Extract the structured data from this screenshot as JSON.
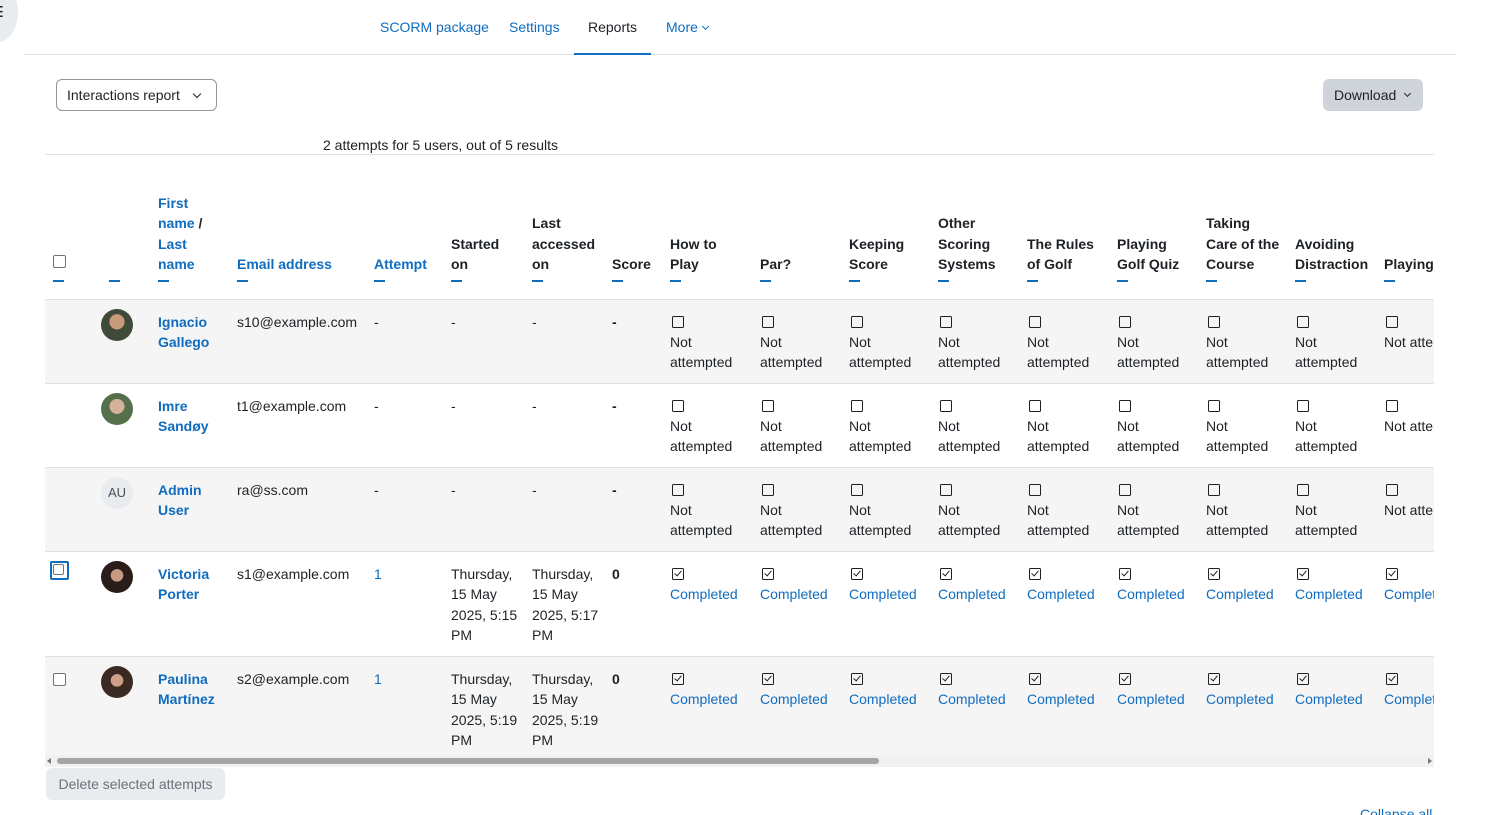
{
  "nav": {
    "tabs": [
      {
        "label": "SCORM package"
      },
      {
        "label": "Settings"
      },
      {
        "label": "Reports"
      },
      {
        "label": "More"
      }
    ],
    "active_tab": "Reports"
  },
  "report_select": {
    "value": "Interactions report"
  },
  "download": {
    "label": "Download"
  },
  "summary": "2 attempts for 5 users, out of 5 results",
  "table": {
    "headers": {
      "first_name": "First name",
      "sep": " / ",
      "last_name": "Last name",
      "email": "Email address",
      "attempt": "Attempt",
      "started": "Started on",
      "last_accessed": "Last accessed on",
      "score": "Score",
      "questions": [
        "How to Play",
        "Par?",
        "Keeping Score",
        "Other Scoring Systems",
        "The Rules of Golf",
        "Playing Golf Quiz",
        "Taking Care of the Course",
        "Avoiding Distraction",
        "Playing Politely"
      ]
    },
    "rows": [
      {
        "avatar": "photo",
        "first": "Ignacio",
        "last": "Gallego",
        "email": "s10@example.com",
        "attempt": "-",
        "started": "-",
        "last_accessed": "-",
        "score": "-",
        "status": "Not attempted"
      },
      {
        "avatar": "photo",
        "first": "Imre",
        "last": "Sandøy",
        "email": "t1@example.com",
        "attempt": "-",
        "started": "-",
        "last_accessed": "-",
        "score": "-",
        "status": "Not attempted"
      },
      {
        "avatar": "AU",
        "first": "Admin",
        "last": "User",
        "email": "ra@ss.com",
        "attempt": "-",
        "started": "-",
        "last_accessed": "-",
        "score": "-",
        "status": "Not attempted"
      },
      {
        "avatar": "photo",
        "first": "Victoria",
        "last": "Porter",
        "email": "s1@example.com",
        "attempt": "1",
        "started": "Thursday, 15 May 2025, 5:15 PM",
        "last_accessed": "Thursday, 15 May 2025, 5:17 PM",
        "score": "0",
        "status": "Completed"
      },
      {
        "avatar": "photo",
        "first": "Paulina",
        "last": "Martínez",
        "email": "s2@example.com",
        "attempt": "1",
        "started": "Thursday, 15 May 2025, 5:19 PM",
        "last_accessed": "Thursday, 15 May 2025, 5:19 PM",
        "score": "0",
        "status": "Completed"
      }
    ]
  },
  "delete_button": {
    "label": "Delete selected attempts"
  },
  "collapse_all": {
    "label": "Collapse all"
  },
  "colors": {
    "accent": "#0f6cbf",
    "text": "#1d2125",
    "row_alt": "#f5f5f5",
    "border": "#dee2e6"
  }
}
